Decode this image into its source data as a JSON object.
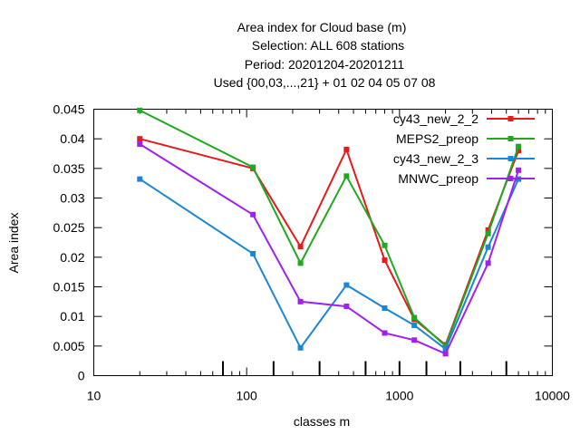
{
  "chart_data": {
    "type": "line",
    "title_lines": [
      "Area index  for Cloud base (m)",
      "Selection: ALL    608 stations",
      "Period: 20201204-20201211",
      "Used {00,03,...,21} + 01 02 04 05 07 08"
    ],
    "xlabel": "classes m",
    "ylabel": "Area index",
    "x_scale": "log",
    "xlim": [
      10,
      10000
    ],
    "ylim": [
      0,
      0.045
    ],
    "x_ticks": [
      10,
      100,
      1000,
      10000
    ],
    "x_tick_labels": [
      "10",
      "100",
      "1000",
      "10000"
    ],
    "y_ticks": [
      0,
      0.005,
      0.01,
      0.015,
      0.02,
      0.025,
      0.03,
      0.035,
      0.04,
      0.045
    ],
    "y_tick_labels": [
      "0",
      "0.005",
      "0.01",
      "0.015",
      "0.02",
      "0.025",
      "0.03",
      "0.035",
      "0.04",
      "0.045"
    ],
    "class_boundaries": [
      70,
      150,
      300,
      600,
      1000,
      1500,
      2500,
      5000
    ],
    "grid": false,
    "legend_position": "top-right",
    "x": [
      20,
      110,
      225,
      450,
      800,
      1250,
      2000,
      3800,
      6000
    ],
    "series": [
      {
        "name": "cy43_new_2_2",
        "color": "#e41a1c",
        "values": [
          0.04,
          0.035,
          0.0218,
          0.0382,
          0.0195,
          0.0095,
          0.0052,
          0.0246,
          0.038
        ]
      },
      {
        "name": "MEPS2_preop",
        "color": "#1fa91f",
        "values": [
          0.0448,
          0.0352,
          0.019,
          0.0337,
          0.022,
          0.0098,
          0.005,
          0.024,
          0.0387
        ]
      },
      {
        "name": "cy43_new_2_3",
        "color": "#1c86d4",
        "values": [
          0.0332,
          0.0206,
          0.0047,
          0.0153,
          0.0114,
          0.0085,
          0.0045,
          0.0217,
          0.0332
        ]
      },
      {
        "name": "MNWC_preop",
        "color": "#a020f0",
        "values": [
          0.0391,
          0.0272,
          0.0125,
          0.0117,
          0.0072,
          0.006,
          0.0037,
          0.019,
          0.0347
        ]
      }
    ]
  }
}
